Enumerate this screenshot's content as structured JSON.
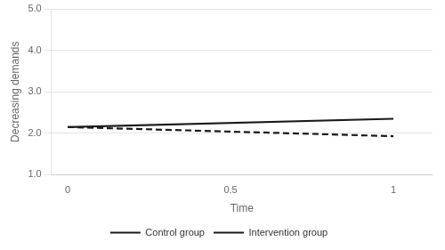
{
  "chart_data": {
    "type": "line",
    "xlabel": "Time",
    "ylabel": "Decreasing demands",
    "x": [
      0,
      1
    ],
    "series": [
      {
        "name": "Control group",
        "color": "#1a1a1a",
        "line_style": "dashed",
        "values": [
          2.15,
          1.93
        ]
      },
      {
        "name": "Intervention group",
        "color": "#1a1a1a",
        "line_style": "solid",
        "values": [
          2.15,
          2.35
        ]
      }
    ],
    "xlim": [
      -0.05,
      1.12
    ],
    "xticks": [
      0,
      0.5,
      1
    ],
    "ylim": [
      1.0,
      5.0
    ],
    "yticks": [
      {
        "value": 1.0,
        "label": "1.0"
      },
      {
        "value": 2.0,
        "label": "2.0"
      },
      {
        "value": 3.0,
        "label": "3.0"
      },
      {
        "value": 4.0,
        "label": "4.0"
      },
      {
        "value": 5.0,
        "label": "5.0"
      }
    ],
    "grid": "y",
    "legend": "bottom"
  }
}
